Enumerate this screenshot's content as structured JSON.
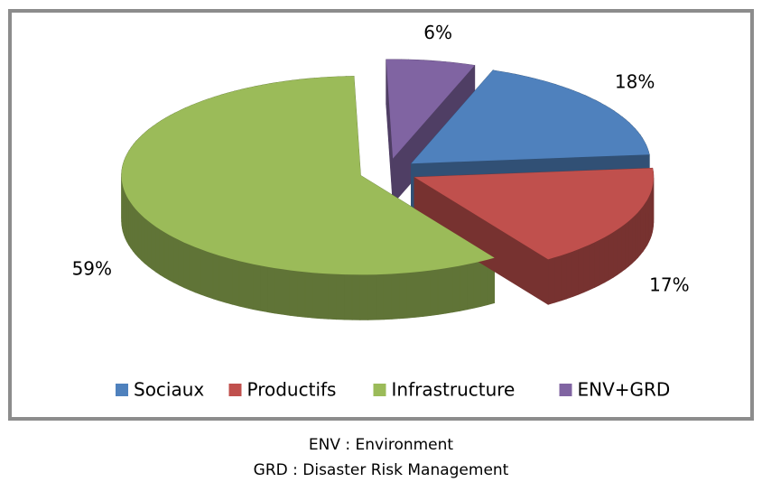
{
  "chart_data": {
    "type": "pie",
    "categories": [
      "Sociaux",
      "Productifs",
      "Infrastructure",
      "ENV+GRD"
    ],
    "values": [
      18,
      17,
      59,
      6
    ],
    "value_labels": [
      "18%",
      "17%",
      "59%",
      "6%"
    ],
    "colors": [
      "#4f81bd",
      "#c0504d",
      "#9bbb59",
      "#8064a2"
    ],
    "legend": "bottom",
    "notes": [
      "ENV : Environment",
      "GRD : Disaster Risk Management"
    ]
  }
}
